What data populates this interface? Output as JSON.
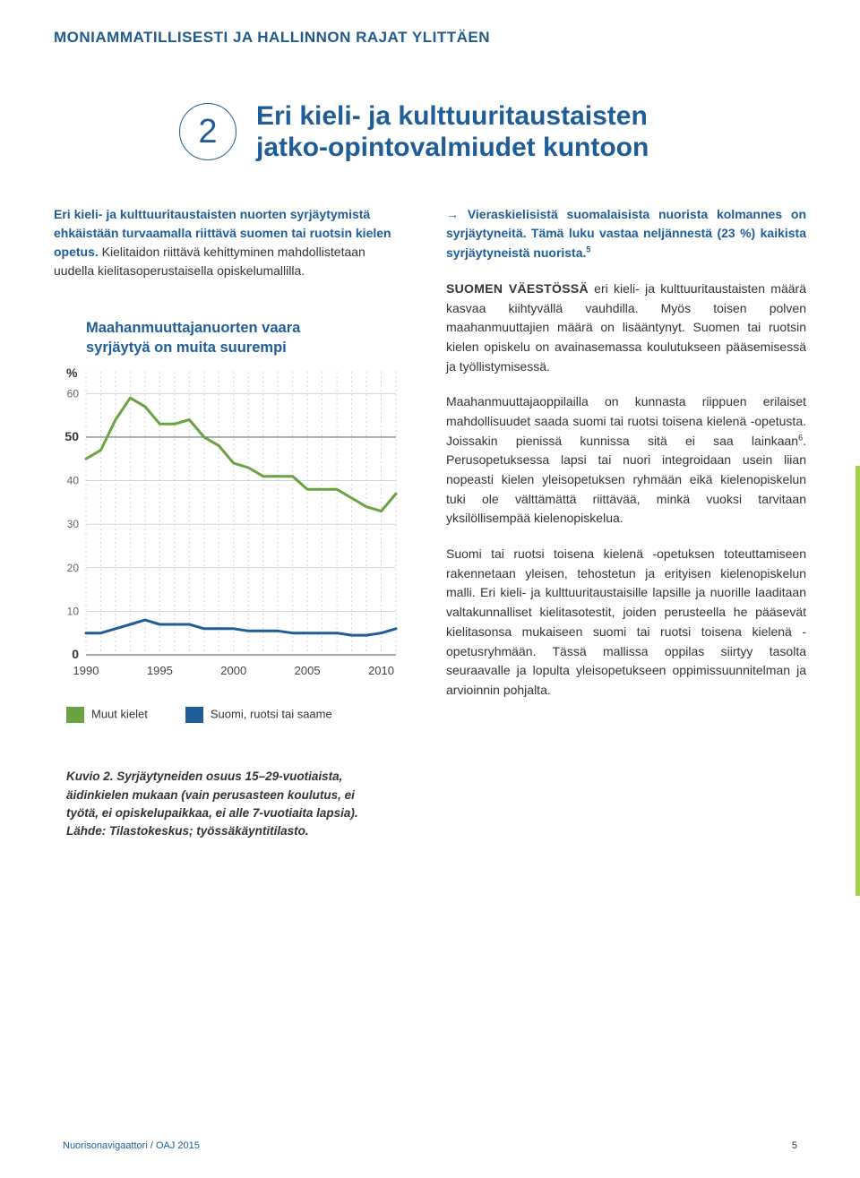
{
  "section_label": "MONIAMMATILLISESTI JA HALLINNON RAJAT YLITTÄEN",
  "badge_number": "2",
  "headline_line1": "Eri kieli- ja kulttuuritaustaisten",
  "headline_line2": "jatko-opintovalmiudet kuntoon",
  "intro_lead": "Eri kieli- ja kulttuuritaustaisten nuorten syrjäytymistä ehkäistään turvaamalla riittävä suomen tai ruotsin kielen opetus.",
  "intro_rest": " Kielitaidon riittävä kehittyminen mahdollistetaan uudella kielitasoperustaisella opiskelumallilla.",
  "chart": {
    "title_line1": "Maahanmuuttajanuorten vaara",
    "title_line2": "syrjäytyä on muita suurempi",
    "type": "line",
    "y_unit": "%",
    "y_major": [
      0,
      50
    ],
    "y_minor": [
      10,
      20,
      30,
      40,
      60
    ],
    "ylim": [
      0,
      65
    ],
    "x_labels": [
      "1990",
      "1995",
      "2000",
      "2005",
      "2010"
    ],
    "x_years": [
      1990,
      1991,
      1992,
      1993,
      1994,
      1995,
      1996,
      1997,
      1998,
      1999,
      2000,
      2001,
      2002,
      2003,
      2004,
      2005,
      2006,
      2007,
      2008,
      2009,
      2010,
      2011
    ],
    "series": [
      {
        "name": "Muut kielet",
        "color": "#6aa242",
        "stroke_width": 3,
        "values": [
          45,
          47,
          54,
          59,
          57,
          53,
          53,
          54,
          50,
          48,
          44,
          43,
          41,
          41,
          41,
          38,
          38,
          38,
          36,
          34,
          33,
          37
        ]
      },
      {
        "name": "Suomi, ruotsi tai saame",
        "color": "#1e5d97",
        "stroke_width": 3,
        "values": [
          5,
          5,
          6,
          7,
          8,
          7,
          7,
          7,
          6,
          6,
          6,
          5.5,
          5.5,
          5.5,
          5,
          5,
          5,
          5,
          4.5,
          4.5,
          5,
          6
        ]
      }
    ],
    "grid_major_color": "#888888",
    "grid_minor_color": "#cccccc",
    "vgrid_color": "#cfd6da",
    "background": "#ffffff"
  },
  "legend": {
    "a_label": "Muut kielet",
    "a_color": "#6aa242",
    "b_label": "Suomi, ruotsi tai saame",
    "b_color": "#1e5d97"
  },
  "caption": "Kuvio 2. Syrjäytyneiden osuus 15–29-vuotiaista, äidinkielen mukaan (vain perusasteen koulutus, ei työtä, ei opiskelupaikkaa, ei alle 7-vuotiaita lapsia). Lähde: Tilastokeskus; työssäkäyntitilasto.",
  "right": {
    "arrow": "→",
    "p1_lead": "Vieraskielisistä suomalaisista nuorista kolmannes on syrjäytyneitä. Tämä luku vastaa neljännestä (23 %) kaikista syrjäytyneistä nuorista.",
    "p1_sup": "5",
    "p2_runin": "SUOMEN VÄESTÖSSÄ",
    "p2_rest": " eri kieli- ja kulttuuritaustaisten määrä kasvaa kiihtyvällä vauhdilla. Myös toisen polven maahanmuuttajien määrä on lisääntynyt. Suomen tai ruotsin kielen opiskelu on avainasemassa koulutukseen pääsemisessä ja työllistymisessä.",
    "p3": "Maahanmuuttajaoppilailla on kunnasta riippuen erilaiset mahdollisuudet saada suomi tai ruotsi toisena kielenä -opetusta. Joissakin pienissä kunnissa sitä ei saa lainkaan",
    "p3_sup": "6",
    "p3_tail": ". Perusopetuksessa lapsi tai nuori integroidaan usein liian nopeasti kielen yleisopetuksen ryhmään eikä kielenopiskelun tuki ole välttämättä riittävää, minkä vuoksi tarvitaan yksilöllisempää kielenopiskelua.",
    "p4": "Suomi tai ruotsi toisena kielenä -opetuksen toteuttamiseen rakennetaan yleisen, tehostetun ja erityisen kielenopiskelun malli. Eri kieli- ja kulttuuritaustaisille lapsille ja nuorille laaditaan valtakunnalliset kielitasotestit, joiden perusteella he pääsevät kielitasonsa mukaiseen suomi tai ruotsi toisena kielenä -opetusryhmään. Tässä mallissa oppilas siirtyy tasolta seuraavalle ja lopulta yleisopetukseen oppimissuunnitelman ja arvioinnin pohjalta."
  },
  "footer": {
    "doc": "Nuorisonavigaattori / OAJ 2015",
    "page": "5"
  },
  "accent_color": "#a5cf4c"
}
